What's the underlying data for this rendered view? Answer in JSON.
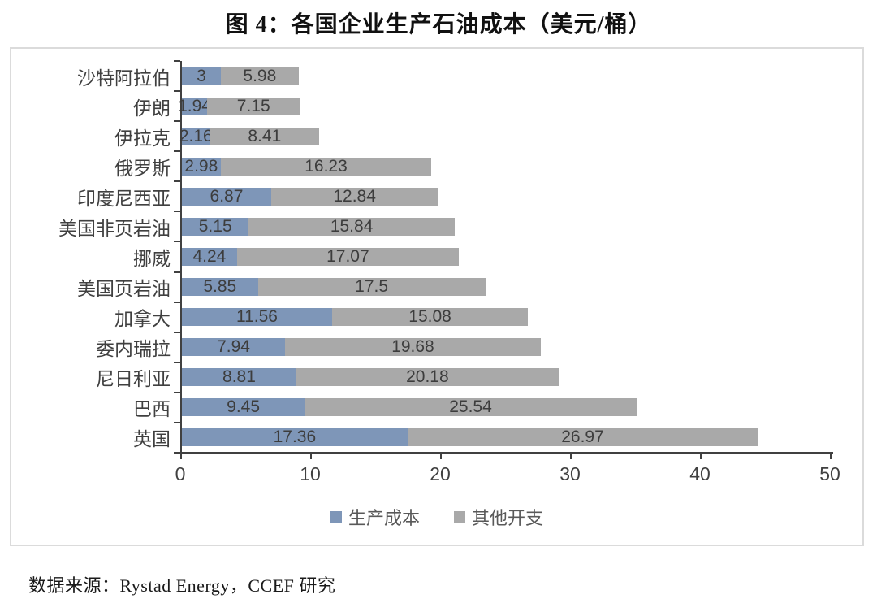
{
  "title": "图 4：各国企业生产石油成本（美元/桶）",
  "source": "数据来源：Rystad Energy，CCEF 研究",
  "legend": [
    {
      "label": "生产成本",
      "color": "#7e96b8"
    },
    {
      "label": "其他开支",
      "color": "#a9a9a9"
    }
  ],
  "colors": {
    "production": "#7e96b8",
    "other": "#a9a9a9",
    "axis": "#404040"
  },
  "chart_data": {
    "type": "bar",
    "orientation": "horizontal",
    "stacked": true,
    "title": "图 4：各国企业生产石油成本（美元/桶）",
    "xlabel": "",
    "ylabel": "",
    "xlim": [
      0,
      50
    ],
    "xticks": [
      0,
      10,
      20,
      30,
      40,
      50
    ],
    "grid": false,
    "legend_position": "bottom",
    "categories": [
      "沙特阿拉伯",
      "伊朗",
      "伊拉克",
      "俄罗斯",
      "印度尼西亚",
      "美国非页岩油",
      "挪威",
      "美国页岩油",
      "加拿大",
      "委内瑞拉",
      "尼日利亚",
      "巴西",
      "英国"
    ],
    "series": [
      {
        "name": "生产成本",
        "color": "#7e96b8",
        "values": [
          3,
          1.94,
          2.16,
          2.98,
          6.87,
          5.15,
          4.24,
          5.85,
          11.56,
          7.94,
          8.81,
          9.45,
          17.36
        ]
      },
      {
        "name": "其他开支",
        "color": "#a9a9a9",
        "values": [
          5.98,
          7.15,
          8.41,
          16.23,
          12.84,
          15.84,
          17.07,
          17.5,
          15.08,
          19.68,
          20.18,
          25.54,
          26.97
        ]
      }
    ]
  }
}
